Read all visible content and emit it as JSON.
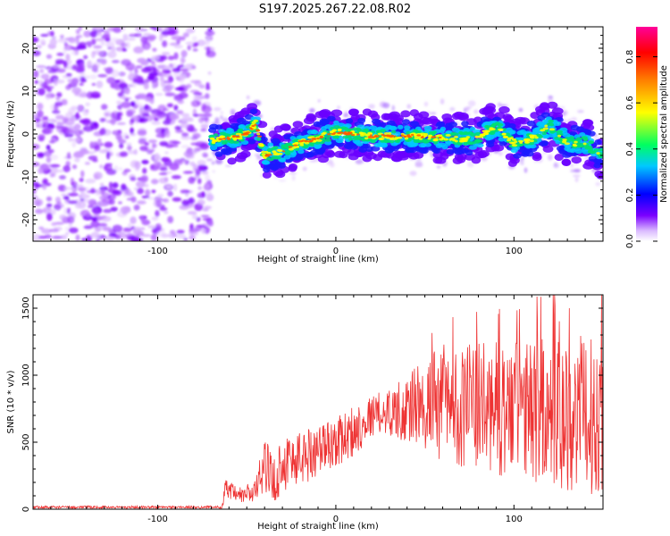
{
  "title": "S197.2025.267.22.08.R02",
  "chart_data": [
    {
      "type": "heatmap",
      "name": "spectrogram",
      "xlabel": "Height of straight line (km)",
      "ylabel": "Frequency (Hz)",
      "xlim": [
        -170,
        150
      ],
      "ylim": [
        -25,
        25
      ],
      "xticks": [
        -100,
        0,
        100
      ],
      "xtick_labels": [
        "-100",
        "0",
        "100"
      ],
      "yticks": [
        -20,
        -10,
        0,
        10,
        20
      ],
      "ytick_labels": [
        "-20",
        "-10",
        "0",
        "10",
        "20"
      ],
      "noise_region_x": [
        -170,
        -70
      ],
      "signal_ridge": {
        "x": [
          -70,
          -60,
          -50,
          -45,
          -40,
          -30,
          -20,
          -10,
          0,
          10,
          20,
          30,
          40,
          50,
          60,
          70,
          80,
          90,
          100,
          110,
          120,
          130,
          140,
          150
        ],
        "y": [
          -1.5,
          -1,
          0,
          2.5,
          -5,
          -4,
          -2,
          -1,
          0.5,
          0,
          -0.5,
          -0.5,
          -0.5,
          -0.5,
          -1,
          -1,
          -1,
          2,
          -2,
          -1,
          2,
          -2,
          -2,
          -5
        ]
      },
      "colorbar": {
        "label": "Normalized spectral amplitude",
        "range": [
          0,
          0.93
        ],
        "ticks": [
          0.0,
          0.2,
          0.4,
          0.6,
          0.8
        ],
        "tick_labels": [
          "0.0",
          "0.2",
          "0.4",
          "0.6",
          "0.8"
        ],
        "colors": [
          "#ffffff",
          "#7a00ff",
          "#0000ff",
          "#00c8ff",
          "#00ff60",
          "#ffff00",
          "#ff8000",
          "#ff0000",
          "#ff0099"
        ]
      }
    },
    {
      "type": "line",
      "name": "snr",
      "xlabel": "Height of straight line (km)",
      "ylabel": "SNR (10 * v/v)",
      "xlim": [
        -170,
        150
      ],
      "ylim": [
        0,
        1600
      ],
      "xticks": [
        -100,
        0,
        100
      ],
      "xtick_labels": [
        "-100",
        "0",
        "100"
      ],
      "yticks": [
        0,
        500,
        1000,
        1500
      ],
      "ytick_labels": [
        "0",
        "500",
        "1000",
        "1500"
      ],
      "color": "#ee3333",
      "envelope": {
        "x": [
          -170,
          -150,
          -100,
          -64,
          -62,
          -55,
          -45,
          -40,
          -35,
          -30,
          -20,
          -10,
          0,
          10,
          20,
          30,
          40,
          50,
          60,
          80,
          100,
          120,
          140,
          150
        ],
        "mean": [
          15,
          15,
          15,
          15,
          150,
          100,
          130,
          350,
          200,
          350,
          380,
          450,
          500,
          580,
          700,
          730,
          750,
          780,
          770,
          760,
          740,
          720,
          700,
          680
        ],
        "spread": [
          10,
          10,
          10,
          10,
          80,
          60,
          100,
          200,
          180,
          220,
          220,
          200,
          180,
          200,
          150,
          180,
          260,
          350,
          420,
          480,
          520,
          560,
          600,
          560
        ]
      }
    }
  ]
}
